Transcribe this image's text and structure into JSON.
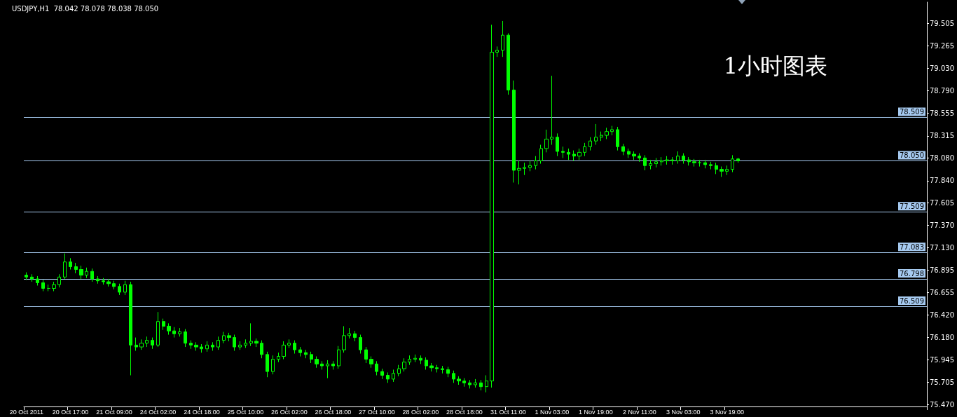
{
  "chart_data": {
    "type": "candlestick",
    "title": "USDJPY,H1  78.042 78.078 78.038 78.050",
    "annotations": [
      "1小时图表"
    ],
    "categories": [
      "20 Oct 2011",
      null,
      null,
      null,
      null,
      null,
      null,
      null,
      "20 Oct 17:00",
      null,
      null,
      null,
      null,
      null,
      null,
      null,
      "21 Oct 09:00",
      null,
      null,
      null,
      null,
      null,
      null,
      null,
      "24 Oct 02:00",
      null,
      null,
      null,
      null,
      null,
      null,
      null,
      "24 Oct 18:00",
      null,
      null,
      null,
      null,
      null,
      null,
      null,
      "25 Oct 10:00",
      null,
      null,
      null,
      null,
      null,
      null,
      null,
      "26 Oct 02:00",
      null,
      null,
      null,
      null,
      null,
      null,
      null,
      "26 Oct 18:00",
      null,
      null,
      null,
      null,
      null,
      null,
      null,
      "27 Oct 10:00",
      null,
      null,
      null,
      null,
      null,
      null,
      null,
      "28 Oct 02:00",
      null,
      null,
      null,
      null,
      null,
      null,
      null,
      "28 Oct 18:00",
      null,
      null,
      null,
      null,
      null,
      null,
      null,
      "31 Oct 11:00",
      null,
      null,
      null,
      null,
      null,
      null,
      null,
      "1 Nov 03:00",
      null,
      null,
      null,
      null,
      null,
      null,
      null,
      "1 Nov 19:00",
      null,
      null,
      null,
      null,
      null,
      null,
      null,
      "2 Nov 11:00",
      null,
      null,
      null,
      null,
      null,
      null,
      null,
      "3 Nov 03:00",
      null,
      null,
      null,
      null,
      null,
      null,
      null,
      "3 Nov 19:00",
      null,
      null,
      null,
      null,
      null,
      null,
      null,
      null,
      null,
      null,
      null,
      null,
      null,
      null,
      null,
      null,
      null,
      null,
      null,
      null,
      null,
      null,
      null,
      null,
      null,
      null,
      null,
      null,
      null,
      null,
      null,
      null,
      null,
      null,
      null,
      null
    ],
    "series": [
      {
        "color": "#00ff00",
        "ohlc": [
          [
            76.84,
            76.87,
            76.79,
            76.82
          ],
          [
            76.82,
            76.85,
            76.77,
            76.8
          ],
          [
            76.8,
            76.83,
            76.73,
            76.76
          ],
          [
            76.76,
            76.79,
            76.67,
            76.7
          ],
          [
            76.7,
            76.74,
            76.67,
            76.7
          ],
          [
            76.7,
            76.77,
            76.67,
            76.74
          ],
          [
            76.74,
            76.85,
            76.71,
            76.82
          ],
          [
            76.82,
            77.07,
            76.8,
            76.98
          ],
          [
            76.98,
            77.02,
            76.9,
            76.93
          ],
          [
            76.93,
            76.97,
            76.86,
            76.9
          ],
          [
            76.9,
            76.94,
            76.8,
            76.84
          ],
          [
            76.84,
            76.92,
            76.81,
            76.88
          ],
          [
            76.88,
            76.91,
            76.77,
            76.8
          ],
          [
            76.8,
            76.83,
            76.75,
            76.78
          ],
          [
            76.78,
            76.81,
            76.74,
            76.77
          ],
          [
            76.77,
            76.8,
            76.72,
            76.75
          ],
          [
            76.75,
            76.78,
            76.69,
            76.72
          ],
          [
            76.72,
            76.75,
            76.63,
            76.66
          ],
          [
            76.66,
            76.78,
            76.63,
            76.74
          ],
          [
            76.74,
            76.77,
            75.78,
            76.1
          ],
          [
            76.1,
            76.18,
            76.04,
            76.08
          ],
          [
            76.08,
            76.16,
            76.05,
            76.12
          ],
          [
            76.12,
            76.19,
            76.08,
            76.15
          ],
          [
            76.15,
            76.18,
            76.06,
            76.1
          ],
          [
            76.1,
            76.45,
            76.08,
            76.35
          ],
          [
            76.35,
            76.38,
            76.26,
            76.3
          ],
          [
            76.3,
            76.33,
            76.21,
            76.25
          ],
          [
            76.25,
            76.29,
            76.18,
            76.22
          ],
          [
            76.22,
            76.28,
            76.19,
            76.24
          ],
          [
            76.24,
            76.27,
            76.08,
            76.12
          ],
          [
            76.12,
            76.15,
            76.06,
            76.1
          ],
          [
            76.1,
            76.13,
            76.04,
            76.08
          ],
          [
            76.08,
            76.11,
            76.02,
            76.06
          ],
          [
            76.06,
            76.14,
            76.03,
            76.1
          ],
          [
            76.1,
            76.13,
            76.04,
            76.08
          ],
          [
            76.08,
            76.19,
            76.05,
            76.15
          ],
          [
            76.15,
            76.24,
            76.12,
            76.2
          ],
          [
            76.2,
            76.23,
            76.14,
            76.18
          ],
          [
            76.18,
            76.21,
            76.04,
            76.08
          ],
          [
            76.08,
            76.14,
            76.05,
            76.1
          ],
          [
            76.1,
            76.16,
            76.07,
            76.12
          ],
          [
            76.12,
            76.33,
            76.09,
            76.14
          ],
          [
            76.14,
            76.17,
            76.08,
            76.12
          ],
          [
            76.12,
            76.15,
            75.96,
            76.0
          ],
          [
            76.0,
            76.03,
            75.76,
            75.82
          ],
          [
            75.82,
            75.99,
            75.79,
            75.95
          ],
          [
            75.95,
            76.02,
            75.92,
            75.98
          ],
          [
            75.98,
            76.14,
            75.95,
            76.1
          ],
          [
            76.1,
            76.16,
            76.07,
            76.12
          ],
          [
            76.12,
            76.15,
            76.01,
            76.05
          ],
          [
            76.05,
            76.08,
            75.98,
            76.02
          ],
          [
            76.02,
            76.05,
            75.96,
            76.0
          ],
          [
            76.0,
            76.03,
            75.91,
            75.95
          ],
          [
            75.95,
            75.98,
            75.86,
            75.9
          ],
          [
            75.9,
            75.93,
            75.84,
            75.88
          ],
          [
            75.88,
            75.94,
            75.75,
            75.9
          ],
          [
            75.9,
            75.93,
            75.84,
            75.88
          ],
          [
            75.88,
            76.09,
            75.85,
            76.05
          ],
          [
            76.05,
            76.3,
            76.02,
            76.2
          ],
          [
            76.2,
            76.28,
            76.17,
            76.22
          ],
          [
            76.22,
            76.25,
            76.14,
            76.18
          ],
          [
            76.18,
            76.21,
            76.01,
            76.05
          ],
          [
            76.05,
            76.08,
            75.91,
            75.95
          ],
          [
            75.95,
            75.98,
            75.86,
            75.9
          ],
          [
            75.9,
            75.93,
            75.78,
            75.82
          ],
          [
            75.82,
            75.85,
            75.74,
            75.78
          ],
          [
            75.78,
            75.81,
            75.7,
            75.74
          ],
          [
            75.74,
            75.84,
            75.71,
            75.8
          ],
          [
            75.8,
            75.89,
            75.77,
            75.85
          ],
          [
            75.85,
            75.96,
            75.82,
            75.92
          ],
          [
            75.92,
            75.99,
            75.89,
            75.95
          ],
          [
            75.95,
            76.0,
            75.92,
            75.96
          ],
          [
            75.96,
            75.99,
            75.9,
            75.94
          ],
          [
            75.94,
            75.97,
            75.84,
            75.88
          ],
          [
            75.88,
            75.91,
            75.82,
            75.86
          ],
          [
            75.86,
            75.89,
            75.81,
            75.85
          ],
          [
            75.85,
            75.88,
            75.8,
            75.84
          ],
          [
            75.84,
            75.87,
            75.76,
            75.8
          ],
          [
            75.8,
            75.83,
            75.7,
            75.74
          ],
          [
            75.74,
            75.77,
            75.68,
            75.72
          ],
          [
            75.72,
            75.75,
            75.66,
            75.7
          ],
          [
            75.7,
            75.73,
            75.64,
            75.68
          ],
          [
            75.68,
            75.74,
            75.65,
            75.7
          ],
          [
            75.7,
            75.73,
            75.62,
            75.66
          ],
          [
            75.66,
            75.78,
            75.6,
            75.72
          ],
          [
            75.72,
            79.49,
            75.65,
            79.2
          ],
          [
            79.2,
            79.26,
            79.15,
            79.22
          ],
          [
            79.22,
            79.53,
            79.15,
            79.38
          ],
          [
            79.38,
            79.4,
            78.75,
            78.8
          ],
          [
            78.8,
            78.9,
            77.82,
            77.95
          ],
          [
            77.95,
            78.05,
            77.8,
            77.97
          ],
          [
            77.97,
            78.03,
            77.9,
            77.98
          ],
          [
            77.98,
            78.05,
            77.94,
            78.0
          ],
          [
            78.0,
            78.1,
            77.96,
            78.05
          ],
          [
            78.05,
            78.22,
            78.02,
            78.18
          ],
          [
            78.18,
            78.38,
            78.14,
            78.28
          ],
          [
            78.28,
            78.95,
            78.22,
            78.3
          ],
          [
            78.3,
            78.34,
            78.1,
            78.15
          ],
          [
            78.15,
            78.2,
            78.08,
            78.14
          ],
          [
            78.14,
            78.18,
            78.06,
            78.12
          ],
          [
            78.12,
            78.16,
            78.05,
            78.1
          ],
          [
            78.1,
            78.18,
            78.06,
            78.14
          ],
          [
            78.14,
            78.24,
            78.1,
            78.2
          ],
          [
            78.2,
            78.3,
            78.16,
            78.26
          ],
          [
            78.26,
            78.44,
            78.22,
            78.3
          ],
          [
            78.3,
            78.36,
            78.26,
            78.32
          ],
          [
            78.32,
            78.4,
            78.28,
            78.36
          ],
          [
            78.36,
            78.42,
            78.32,
            78.38
          ],
          [
            78.38,
            78.41,
            78.16,
            78.2
          ],
          [
            78.2,
            78.23,
            78.11,
            78.15
          ],
          [
            78.15,
            78.18,
            78.08,
            78.12
          ],
          [
            78.12,
            78.15,
            78.06,
            78.1
          ],
          [
            78.1,
            78.13,
            78.04,
            78.08
          ],
          [
            78.08,
            78.11,
            77.95,
            78.0
          ],
          [
            78.0,
            78.06,
            77.96,
            78.02
          ],
          [
            78.02,
            78.08,
            77.98,
            78.04
          ],
          [
            78.04,
            78.09,
            78.0,
            78.05
          ],
          [
            78.05,
            78.1,
            78.01,
            78.06
          ],
          [
            78.06,
            78.09,
            78.01,
            78.05
          ],
          [
            78.05,
            78.15,
            78.02,
            78.1
          ],
          [
            78.1,
            78.13,
            78.02,
            78.06
          ],
          [
            78.06,
            78.09,
            78.0,
            78.04
          ],
          [
            78.04,
            78.07,
            77.99,
            78.03
          ],
          [
            78.03,
            78.06,
            77.99,
            78.03
          ],
          [
            78.03,
            78.06,
            77.97,
            78.01
          ],
          [
            78.01,
            78.04,
            77.96,
            78.0
          ],
          [
            78.0,
            78.03,
            77.91,
            77.96
          ],
          [
            77.96,
            77.99,
            77.88,
            77.94
          ],
          [
            77.94,
            78.0,
            77.9,
            77.96
          ],
          [
            77.96,
            78.11,
            77.93,
            78.07
          ],
          [
            78.07,
            78.08,
            78.03,
            78.05
          ],
          null,
          null,
          null,
          null,
          null,
          null,
          null,
          null,
          null,
          null,
          null,
          null,
          null,
          null,
          null,
          null,
          null,
          null,
          null,
          null,
          null,
          null,
          null,
          null,
          null,
          null,
          null,
          null,
          null,
          null,
          null,
          null,
          null,
          null
        ]
      }
    ],
    "ylim": [
      75.45,
      79.73
    ],
    "yticks": [
      {
        "value": 75.47,
        "label": "75.470"
      },
      {
        "value": 75.705,
        "label": "75.705"
      },
      {
        "value": 75.945,
        "label": "75.945"
      },
      {
        "value": 76.18,
        "label": "76.180"
      },
      {
        "value": 76.42,
        "label": "76.420"
      },
      {
        "value": 76.655,
        "label": "76.655"
      },
      {
        "value": 76.895,
        "label": "76.895"
      },
      {
        "value": 77.13,
        "label": "77.130"
      },
      {
        "value": 77.37,
        "label": "77.370"
      },
      {
        "value": 77.605,
        "label": "77.605"
      },
      {
        "value": 77.84,
        "label": "77.840"
      },
      {
        "value": 78.08,
        "label": "78.080"
      },
      {
        "value": 78.315,
        "label": "78.315"
      },
      {
        "value": 78.555,
        "label": "78.555"
      },
      {
        "value": 78.79,
        "label": "78.790"
      },
      {
        "value": 79.03,
        "label": "79.030"
      },
      {
        "value": 79.265,
        "label": "79.265"
      },
      {
        "value": 79.505,
        "label": "79.505"
      }
    ],
    "ref_lines": [
      {
        "axis": "y",
        "value": 78.509,
        "label": "78.509",
        "color": "#a6caf0"
      },
      {
        "axis": "y",
        "value": 78.05,
        "label": "78.050",
        "color": "#a6caf0"
      },
      {
        "axis": "y",
        "value": 77.509,
        "label": "77.509",
        "color": "#a6caf0"
      },
      {
        "axis": "y",
        "value": 77.083,
        "label": "77.083",
        "color": "#a6caf0"
      },
      {
        "axis": "y",
        "value": 76.798,
        "label": "76.798",
        "color": "#a6caf0"
      },
      {
        "axis": "y",
        "value": 76.509,
        "label": "76.509",
        "color": "#a6caf0"
      }
    ]
  }
}
